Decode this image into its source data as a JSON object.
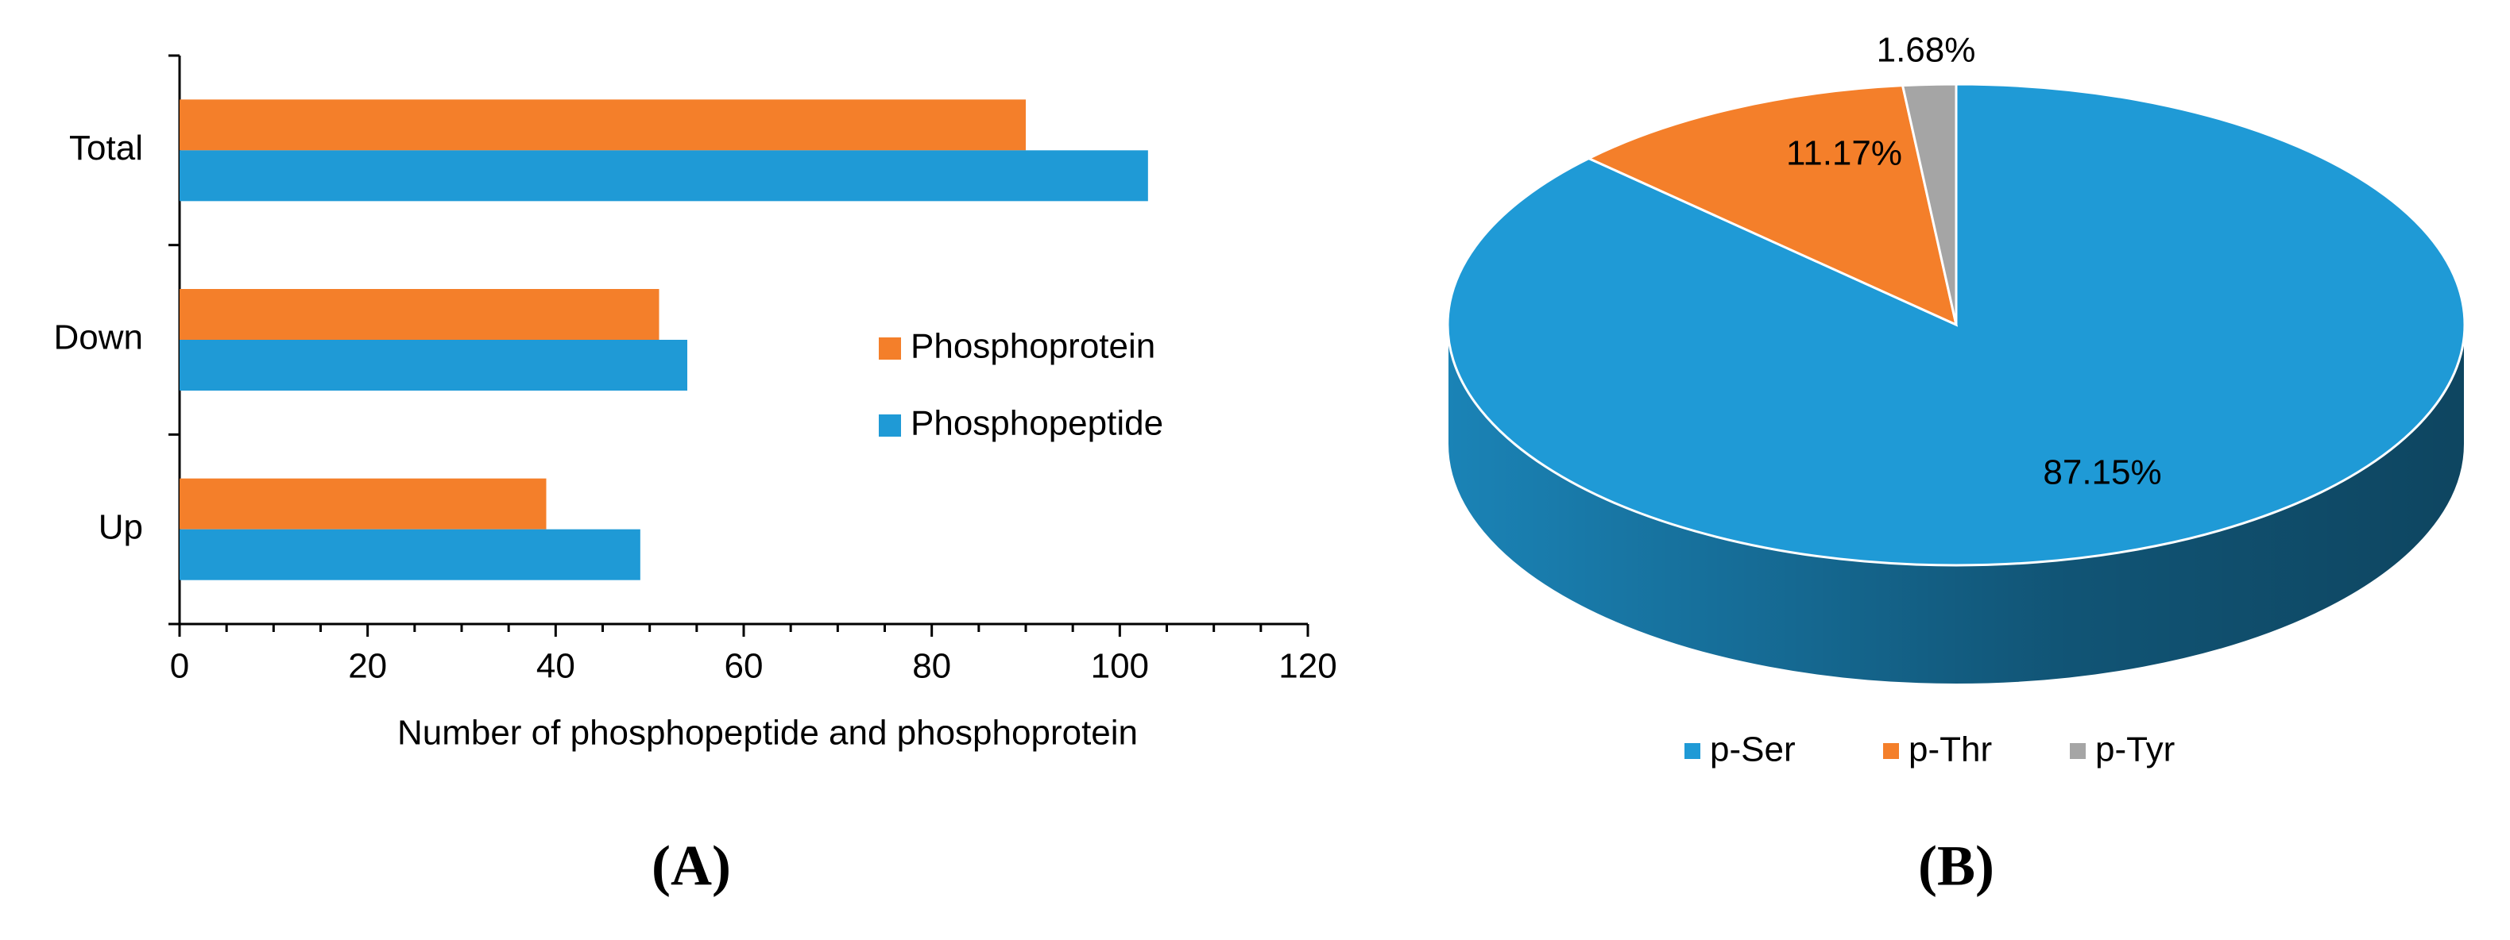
{
  "chart_data": [
    {
      "type": "bar",
      "orientation": "horizontal",
      "panel_label": "(A)",
      "categories": [
        "Total",
        "Down",
        "Up"
      ],
      "series": [
        {
          "name": "Phosphoprotein",
          "color": "#f47f2a",
          "values": [
            90,
            51,
            39
          ]
        },
        {
          "name": "Phosphopeptide",
          "color": "#1f9ad6",
          "values": [
            103,
            54,
            49
          ]
        }
      ],
      "xlabel": "Number of phosphopeptide  and phosphoprotein",
      "xlim": [
        0,
        120
      ],
      "xticks": [
        0,
        20,
        40,
        60,
        80,
        100,
        120
      ],
      "minor_xticks": [
        5,
        10,
        15,
        25,
        30,
        35,
        45,
        50,
        55,
        65,
        70,
        75,
        85,
        90,
        95,
        105,
        110,
        115
      ],
      "legend": "right"
    },
    {
      "type": "pie",
      "style": "3d",
      "panel_label": "(B)",
      "categories": [
        "p-Ser",
        "p-Thr",
        "p-Tyr"
      ],
      "values": [
        87.15,
        11.17,
        1.68
      ],
      "value_labels": [
        "87.15%",
        "11.17%",
        "1.68%"
      ],
      "colors": [
        "#1f9ad6",
        "#f47f2a",
        "#a5a5a5"
      ],
      "legend": "bottom"
    }
  ]
}
